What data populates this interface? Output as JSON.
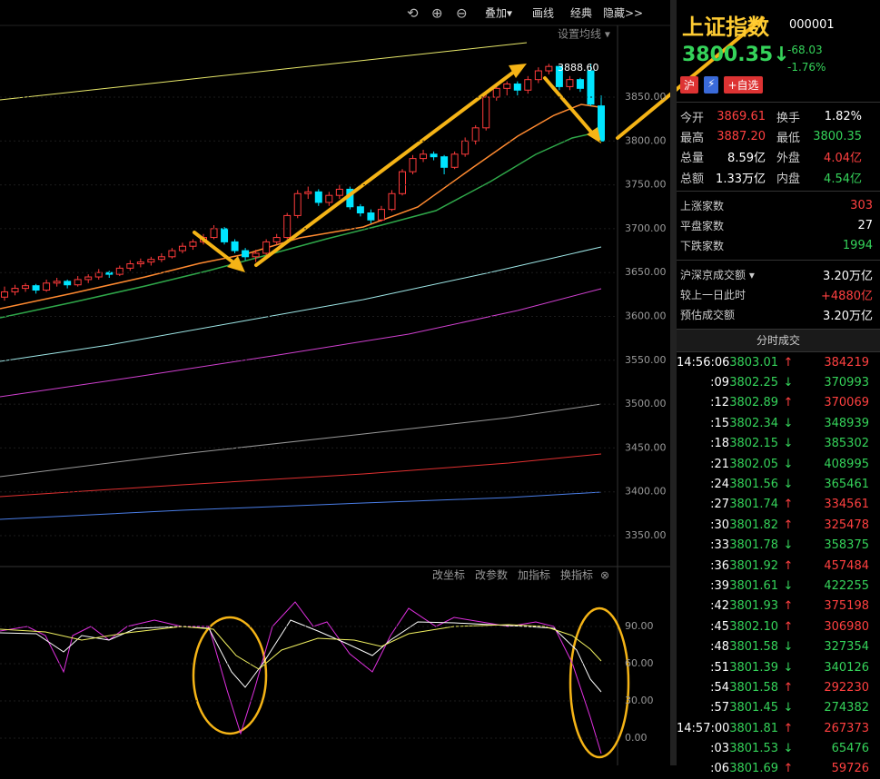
{
  "toolbar": {
    "icons": [
      "⟲",
      "⊕",
      "⊖"
    ],
    "items": [
      "叠加▾",
      "画线",
      "经典",
      "隐藏>>"
    ]
  },
  "main_chart": {
    "ma_button": "设置均线 ▾",
    "high_label": "3888.60",
    "price_ticks": [
      {
        "value": 3850,
        "label": "3850.00"
      },
      {
        "value": 3800,
        "label": "3800.00"
      },
      {
        "value": 3750,
        "label": "3750.00"
      },
      {
        "value": 3700,
        "label": "3700.00"
      },
      {
        "value": 3650,
        "label": "3650.00"
      },
      {
        "value": 3600,
        "label": "3600.00"
      },
      {
        "value": 3550,
        "label": "3550.00"
      },
      {
        "value": 3500,
        "label": "3500.00"
      },
      {
        "value": 3450,
        "label": "3450.00"
      },
      {
        "value": 3400,
        "label": "3400.00"
      },
      {
        "value": 3350,
        "label": "3350.00"
      }
    ],
    "candles": [
      [
        3622,
        3634,
        3618,
        3628
      ],
      [
        3628,
        3636,
        3624,
        3632
      ],
      [
        3632,
        3638,
        3628,
        3635
      ],
      [
        3635,
        3637,
        3626,
        3630
      ],
      [
        3630,
        3642,
        3628,
        3638
      ],
      [
        3638,
        3644,
        3634,
        3640
      ],
      [
        3640,
        3642,
        3632,
        3636
      ],
      [
        3636,
        3646,
        3634,
        3642
      ],
      [
        3642,
        3648,
        3638,
        3645
      ],
      [
        3645,
        3654,
        3642,
        3650
      ],
      [
        3650,
        3652,
        3644,
        3648
      ],
      [
        3648,
        3658,
        3646,
        3655
      ],
      [
        3655,
        3664,
        3652,
        3660
      ],
      [
        3660,
        3666,
        3656,
        3662
      ],
      [
        3662,
        3668,
        3658,
        3665
      ],
      [
        3665,
        3672,
        3662,
        3668
      ],
      [
        3668,
        3678,
        3666,
        3675
      ],
      [
        3675,
        3684,
        3672,
        3680
      ],
      [
        3680,
        3688,
        3676,
        3685
      ],
      [
        3685,
        3694,
        3682,
        3690
      ],
      [
        3690,
        3704,
        3688,
        3700
      ],
      [
        3700,
        3702,
        3682,
        3685
      ],
      [
        3685,
        3688,
        3672,
        3675
      ],
      [
        3675,
        3678,
        3664,
        3668
      ],
      [
        3668,
        3676,
        3662,
        3672
      ],
      [
        3672,
        3688,
        3670,
        3685
      ],
      [
        3685,
        3694,
        3682,
        3690
      ],
      [
        3690,
        3718,
        3688,
        3715
      ],
      [
        3715,
        3744,
        3712,
        3740
      ],
      [
        3740,
        3748,
        3734,
        3742
      ],
      [
        3742,
        3745,
        3726,
        3730
      ],
      [
        3730,
        3742,
        3726,
        3738
      ],
      [
        3738,
        3750,
        3734,
        3745
      ],
      [
        3745,
        3748,
        3722,
        3725
      ],
      [
        3725,
        3728,
        3714,
        3718
      ],
      [
        3718,
        3722,
        3706,
        3710
      ],
      [
        3710,
        3726,
        3708,
        3722
      ],
      [
        3722,
        3744,
        3720,
        3740
      ],
      [
        3740,
        3768,
        3738,
        3765
      ],
      [
        3765,
        3784,
        3762,
        3780
      ],
      [
        3780,
        3790,
        3776,
        3785
      ],
      [
        3785,
        3788,
        3778,
        3782
      ],
      [
        3782,
        3784,
        3762,
        3770
      ],
      [
        3770,
        3788,
        3768,
        3785
      ],
      [
        3785,
        3804,
        3782,
        3800
      ],
      [
        3800,
        3818,
        3796,
        3815
      ],
      [
        3815,
        3854,
        3812,
        3850
      ],
      [
        3850,
        3864,
        3846,
        3860
      ],
      [
        3860,
        3868,
        3852,
        3865
      ],
      [
        3865,
        3868,
        3852,
        3858
      ],
      [
        3858,
        3874,
        3854,
        3870
      ],
      [
        3870,
        3884,
        3866,
        3880
      ],
      [
        3880,
        3888,
        3876,
        3885
      ],
      [
        3885,
        3886,
        3858,
        3862
      ],
      [
        3862,
        3874,
        3858,
        3870
      ],
      [
        3870,
        3872,
        3856,
        3860
      ],
      [
        3880,
        3888,
        3840,
        3842
      ],
      [
        3840,
        3852,
        3800,
        3800
      ]
    ]
  },
  "indicator": {
    "tools": [
      "改坐标",
      "改参数",
      "加指标",
      "换指标"
    ],
    "close_icon": "⊗",
    "ticks": [
      {
        "value": 90,
        "label": "90.00"
      },
      {
        "value": 60,
        "label": "60.00"
      },
      {
        "value": 30,
        "label": "30.00"
      },
      {
        "value": 0,
        "label": "0.00"
      }
    ]
  },
  "quote": {
    "name": "上证指数",
    "code": "000001",
    "price": "3800.35",
    "price_arrow": "↓",
    "change": "-68.03",
    "change_pct": "-1.76%",
    "badges": [
      "沪",
      "⚡",
      "+自选"
    ]
  },
  "stats_pairs": [
    [
      {
        "label": "今开",
        "value": "3869.61",
        "tone": "up"
      },
      {
        "label": "换手",
        "value": "1.82%",
        "tone": "flat"
      }
    ],
    [
      {
        "label": "最高",
        "value": "3887.20",
        "tone": "up"
      },
      {
        "label": "最低",
        "value": "3800.35",
        "tone": "down"
      }
    ],
    [
      {
        "label": "总量",
        "value": "8.59亿",
        "tone": "flat"
      },
      {
        "label": "外盘",
        "value": "4.04亿",
        "tone": "up"
      }
    ],
    [
      {
        "label": "总额",
        "value": "1.33万亿",
        "tone": "flat"
      },
      {
        "label": "内盘",
        "value": "4.54亿",
        "tone": "down"
      }
    ]
  ],
  "stats_rows": [
    {
      "label": "上涨家数",
      "value": "303",
      "tone": "up"
    },
    {
      "label": "平盘家数",
      "value": "27",
      "tone": "flat"
    },
    {
      "label": "下跌家数",
      "value": "1994",
      "tone": "down"
    }
  ],
  "turnover_rows": [
    {
      "label": "沪深京成交额 ▾",
      "value": "3.20万亿",
      "tone": "flat"
    },
    {
      "label": "较上一日此时",
      "value": "+4880亿",
      "tone": "up"
    },
    {
      "label": "预估成交额",
      "value": "3.20万亿",
      "tone": "flat"
    }
  ],
  "trades": {
    "title": "分时成交",
    "rows": [
      {
        "time": "14:56:06",
        "price": "3803.01",
        "arrow": "↑",
        "volume": "384219"
      },
      {
        "time": ":09",
        "price": "3802.25",
        "arrow": "↓",
        "volume": "370993"
      },
      {
        "time": ":12",
        "price": "3802.89",
        "arrow": "↑",
        "volume": "370069"
      },
      {
        "time": ":15",
        "price": "3802.34",
        "arrow": "↓",
        "volume": "348939"
      },
      {
        "time": ":18",
        "price": "3802.15",
        "arrow": "↓",
        "volume": "385302"
      },
      {
        "time": ":21",
        "price": "3802.05",
        "arrow": "↓",
        "volume": "408995"
      },
      {
        "time": ":24",
        "price": "3801.56",
        "arrow": "↓",
        "volume": "365461"
      },
      {
        "time": ":27",
        "price": "3801.74",
        "arrow": "↑",
        "volume": "334561"
      },
      {
        "time": ":30",
        "price": "3801.82",
        "arrow": "↑",
        "volume": "325478"
      },
      {
        "time": ":33",
        "price": "3801.78",
        "arrow": "↓",
        "volume": "358375"
      },
      {
        "time": ":36",
        "price": "3801.92",
        "arrow": "↑",
        "volume": "457484"
      },
      {
        "time": ":39",
        "price": "3801.61",
        "arrow": "↓",
        "volume": "422255"
      },
      {
        "time": ":42",
        "price": "3801.93",
        "arrow": "↑",
        "volume": "375198"
      },
      {
        "time": ":45",
        "price": "3802.10",
        "arrow": "↑",
        "volume": "306980"
      },
      {
        "time": ":48",
        "price": "3801.58",
        "arrow": "↓",
        "volume": "327354"
      },
      {
        "time": ":51",
        "price": "3801.39",
        "arrow": "↓",
        "volume": "340126"
      },
      {
        "time": ":54",
        "price": "3801.58",
        "arrow": "↑",
        "volume": "292230"
      },
      {
        "time": ":57",
        "price": "3801.45",
        "arrow": "↓",
        "volume": "274382"
      },
      {
        "time": "14:57:00",
        "price": "3801.81",
        "arrow": "↑",
        "volume": "267373"
      },
      {
        "time": ":03",
        "price": "3801.53",
        "arrow": "↓",
        "volume": "65476"
      },
      {
        "time": ":06",
        "price": "3801.69",
        "arrow": "↑",
        "volume": "59726"
      }
    ]
  }
}
